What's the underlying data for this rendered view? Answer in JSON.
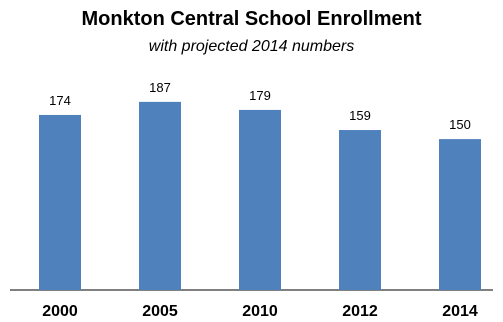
{
  "chart_data": {
    "type": "bar",
    "title": "Monkton Central School Enrollment",
    "subtitle": "with projected 2014 numbers",
    "categories": [
      "2000",
      "2005",
      "2010",
      "2012",
      "2014"
    ],
    "values": [
      174,
      187,
      179,
      159,
      150
    ],
    "ylim": [
      0,
      200
    ],
    "bar_color": "#4f81bd",
    "grid": false,
    "legend": "none"
  }
}
